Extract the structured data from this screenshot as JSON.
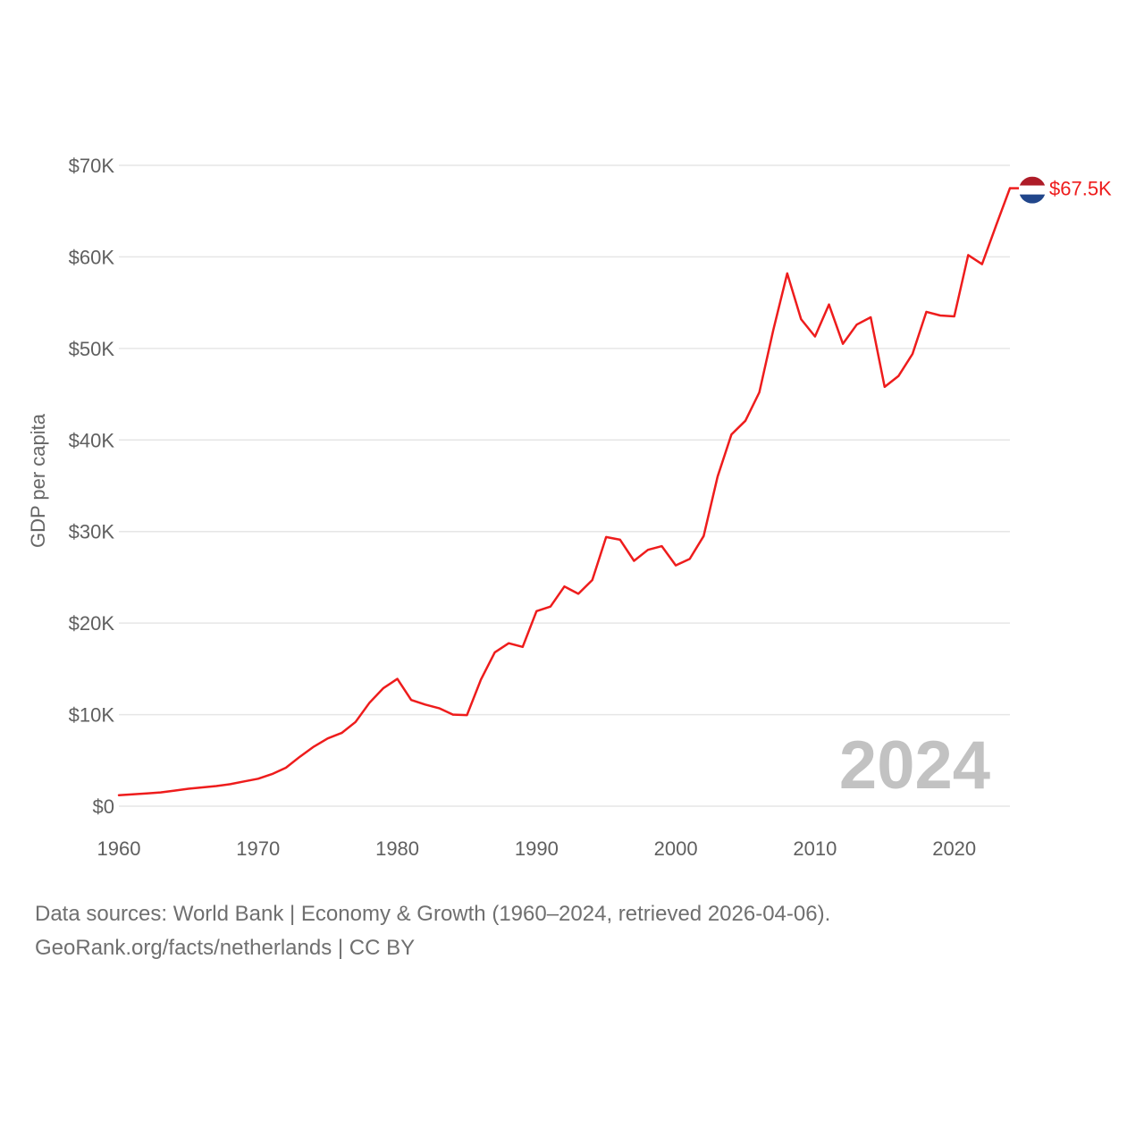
{
  "colors": {
    "line": "#ee1c1c",
    "grid": "#e6e6e6",
    "tick": "#5f5f5f",
    "watermark": "#c2c2c2",
    "flag_red": "#ae1c28",
    "flag_white": "#ffffff",
    "flag_blue": "#21468b"
  },
  "chart_data": {
    "type": "line",
    "title": "",
    "xlabel": "",
    "ylabel": "GDP per capita",
    "xlim": [
      1960,
      2024
    ],
    "ylim": [
      0,
      70000
    ],
    "x_ticks": [
      1960,
      1970,
      1980,
      1990,
      2000,
      2010,
      2020
    ],
    "x_tick_labels": [
      "1960",
      "1970",
      "1980",
      "1990",
      "2000",
      "2010",
      "2020"
    ],
    "y_ticks": [
      0,
      10000,
      20000,
      30000,
      40000,
      50000,
      60000,
      70000
    ],
    "y_tick_labels": [
      "$0",
      "$10K",
      "$20K",
      "$30K",
      "$40K",
      "$50K",
      "$60K",
      "$70K"
    ],
    "grid": true,
    "year_watermark": "2024",
    "series": [
      {
        "name": "Netherlands",
        "flag_icon": "netherlands-flag-icon",
        "end_label": "$67.5K",
        "x": [
          1960,
          1961,
          1962,
          1963,
          1964,
          1965,
          1966,
          1967,
          1968,
          1969,
          1970,
          1971,
          1972,
          1973,
          1974,
          1975,
          1976,
          1977,
          1978,
          1979,
          1980,
          1981,
          1982,
          1983,
          1984,
          1985,
          1986,
          1987,
          1988,
          1989,
          1990,
          1991,
          1992,
          1993,
          1994,
          1995,
          1996,
          1997,
          1998,
          1999,
          2000,
          2001,
          2002,
          2003,
          2004,
          2005,
          2006,
          2007,
          2008,
          2009,
          2010,
          2011,
          2012,
          2013,
          2014,
          2015,
          2016,
          2017,
          2018,
          2019,
          2020,
          2021,
          2022,
          2023,
          2024
        ],
        "values": [
          1200,
          1300,
          1400,
          1500,
          1700,
          1900,
          2050,
          2200,
          2400,
          2700,
          3000,
          3500,
          4200,
          5400,
          6500,
          7400,
          8000,
          9200,
          11300,
          12900,
          13900,
          11600,
          11100,
          10700,
          10000,
          9950,
          13800,
          16800,
          17800,
          17400,
          21300,
          21800,
          24000,
          23200,
          24700,
          29400,
          29100,
          26800,
          28000,
          28400,
          26300,
          27000,
          29500,
          36000,
          40600,
          42100,
          45200,
          52000,
          58200,
          53200,
          51300,
          54800,
          50500,
          52600,
          53400,
          45800,
          47000,
          49400,
          54000,
          53600,
          53500,
          60200,
          59200,
          63400,
          67500
        ]
      }
    ]
  },
  "footer": {
    "line1": "Data sources: World Bank | Economy & Growth (1960–2024, retrieved 2026-04-06).",
    "line2": "GeoRank.org/facts/netherlands | CC BY"
  }
}
